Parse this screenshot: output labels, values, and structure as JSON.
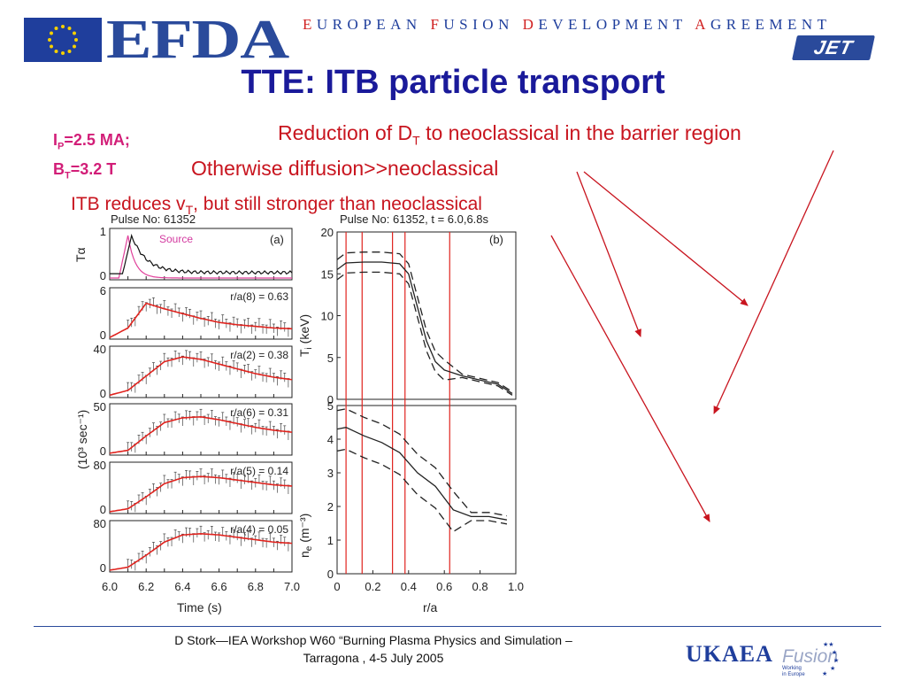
{
  "header": {
    "logo_text": "EFDA",
    "banner_initials": [
      "E",
      "F",
      "D",
      "A"
    ],
    "banner_rests": [
      "UROPEAN ",
      "USION ",
      "EVELOPMENT ",
      "GREEMENT"
    ],
    "jet_logo": "JET",
    "flag_color": "#1f3e9c"
  },
  "slide": {
    "title": "TTE: ITB particle transport",
    "params_ip_a": "I",
    "params_ip_sub": "P",
    "params_ip_b": "=2.5 MA;",
    "params_bt_a": "B",
    "params_bt_sub": "T",
    "params_bt_b": "=3.2 T",
    "note1_a": "Reduction of D",
    "note1_sub": "T",
    "note1_b": " to neoclassical in the barrier region",
    "note2": "Otherwise diffusion>>neoclassical",
    "note3_a": "ITB reduces v",
    "note3_sub": "T",
    "note3_b": ", but still stronger than neoclassical",
    "accent_red": "#c8141e",
    "param_color": "#d21e78",
    "title_color": "#1a1a9a"
  },
  "figure_a": {
    "pulse": "Pulse No: 61352",
    "panel_label": "(a)",
    "source_label": "Source",
    "ylabel_top": "Tα",
    "ylabel_main": "(10³ sec⁻¹)",
    "xlabel": "Time (s)",
    "xticks": [
      "6.0",
      "6.2",
      "6.4",
      "6.6",
      "6.8",
      "7.0"
    ],
    "panels": [
      {
        "ytick": "1",
        "y0": "0"
      },
      {
        "ytick": "6",
        "y0": "0",
        "label": "r/a(8) = 0.63"
      },
      {
        "ytick": "40",
        "y0": "0",
        "label": "r/a(2) = 0.38"
      },
      {
        "ytick": "50",
        "y0": "0",
        "label": "r/a(6) = 0.31"
      },
      {
        "ytick": "80",
        "y0": "0",
        "label": "r/a(5) = 0.14"
      },
      {
        "ytick": "80",
        "y0": "0",
        "label": "r/a(4) = 0.05"
      }
    ]
  },
  "figure_b": {
    "pulse": "Pulse No: 61352, t = 6.0,6.8s",
    "panel_label": "(b)",
    "ti_label": "T",
    "ti_sub": "i",
    "ti_unit": " (keV)",
    "ne_label": "n",
    "ne_sub": "e",
    "ne_unit": " (m⁻³)",
    "xlabel": "r/a",
    "ti_ticks": [
      "20",
      "15",
      "10",
      "5",
      "0"
    ],
    "ne_ticks": [
      "5",
      "4",
      "3",
      "2",
      "1",
      "0"
    ],
    "x_ticks": [
      "0",
      "0.2",
      "0.4",
      "0.6",
      "0.8",
      "1.0"
    ]
  },
  "footer": {
    "line1": "D Stork—IEA Workshop W60 “Burning Plasma Physics and Simulation –",
    "line2": "Tarragona , 4-5 July 2005",
    "ukaea": "UKAEA",
    "fusion": "Fusion",
    "working1": "Working",
    "working2": "in Europe"
  },
  "chart_data": [
    {
      "type": "line",
      "x": [
        6.0,
        6.1,
        6.2,
        6.3,
        6.4,
        6.5,
        6.6,
        6.7,
        6.8,
        6.9,
        7.0
      ],
      "xlabel": "Time (s)",
      "xlim": [
        6.0,
        7.0
      ],
      "series": [
        {
          "name": "Source",
          "values": [
            0,
            1.0,
            0.12,
            0.05,
            0.03,
            0.02,
            0.01,
            0.01,
            0.01,
            0.01,
            0.0
          ]
        },
        {
          "name": "r/a(8) = 0.63",
          "values": [
            0.2,
            1.4,
            4.5,
            3.8,
            3.2,
            2.6,
            2.1,
            1.8,
            1.6,
            1.4,
            1.3
          ]
        },
        {
          "name": "r/a(2) = 0.38",
          "values": [
            2,
            6,
            18,
            30,
            34,
            32,
            28,
            24,
            20,
            17,
            15
          ]
        },
        {
          "name": "r/a(6) = 0.31",
          "values": [
            2,
            5,
            20,
            34,
            39,
            40,
            37,
            33,
            29,
            26,
            24
          ]
        },
        {
          "name": "r/a(5) = 0.14",
          "values": [
            3,
            8,
            28,
            50,
            60,
            62,
            60,
            56,
            52,
            48,
            46
          ]
        },
        {
          "name": "r/a(4) = 0.05",
          "values": [
            3,
            8,
            28,
            50,
            62,
            64,
            62,
            58,
            54,
            50,
            48
          ]
        }
      ]
    },
    {
      "type": "line",
      "x": [
        0.0,
        0.05,
        0.15,
        0.25,
        0.35,
        0.4,
        0.45,
        0.5,
        0.55,
        0.6,
        0.7,
        0.8,
        0.9,
        0.98
      ],
      "xlabel": "r/a",
      "xlim": [
        0,
        1.0
      ],
      "ylabel": "Ti (keV)",
      "ylim": [
        0,
        20
      ],
      "series": [
        {
          "name": "",
          "values": [
            15.5,
            16.3,
            16.4,
            16.4,
            16.2,
            15.0,
            11.0,
            7.0,
            4.5,
            3.5,
            2.8,
            2.3,
            1.8,
            0.7
          ]
        }
      ],
      "vertical_lines": [
        0.05,
        0.14,
        0.31,
        0.38,
        0.63
      ]
    },
    {
      "type": "line",
      "x": [
        0.0,
        0.05,
        0.15,
        0.25,
        0.35,
        0.45,
        0.55,
        0.65,
        0.75,
        0.85,
        0.95
      ],
      "xlabel": "r/a",
      "xlim": [
        0,
        1.0
      ],
      "ylabel": "ne (m⁻³)",
      "ylim": [
        0,
        5
      ],
      "series": [
        {
          "name": "",
          "values": [
            4.3,
            4.35,
            4.1,
            3.9,
            3.6,
            3.0,
            2.6,
            1.9,
            1.7,
            1.7,
            1.6
          ]
        }
      ],
      "vertical_lines": [
        0.05,
        0.14,
        0.31,
        0.38,
        0.63
      ]
    }
  ]
}
